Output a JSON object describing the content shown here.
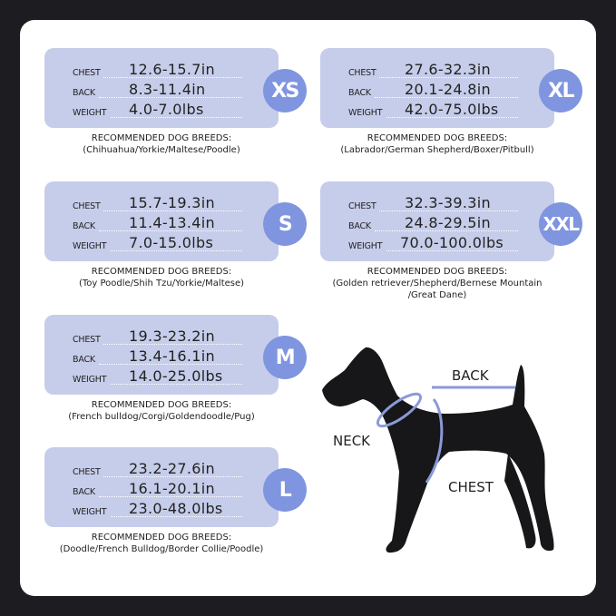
{
  "row_labels": {
    "chest": "CHEST",
    "back": "BACK",
    "weight": "WEIGHT"
  },
  "breeds_heading": "RECOMMENDED DOG BREEDS:",
  "colors": {
    "card": "#c6cdea",
    "badge": "#7f95df",
    "measure_line": "#8a9ad8"
  },
  "sizes": [
    {
      "size": "XS",
      "chest": "12.6-15.7in",
      "back": "8.3-11.4in",
      "weight": "4.0-7.0lbs",
      "breeds": [
        "(Chihuahua/Yorkie/Maltese/Poodle)"
      ]
    },
    {
      "size": "S",
      "chest": "15.7-19.3in",
      "back": "11.4-13.4in",
      "weight": "7.0-15.0lbs",
      "breeds": [
        "(Toy Poodle/Shih Tzu/Yorkie/Maltese)"
      ]
    },
    {
      "size": "M",
      "chest": "19.3-23.2in",
      "back": "13.4-16.1in",
      "weight": "14.0-25.0lbs",
      "breeds": [
        "(French bulldog/Corgi/Goldendoodle/Pug)"
      ]
    },
    {
      "size": "L",
      "chest": "23.2-27.6in",
      "back": "16.1-20.1in",
      "weight": "23.0-48.0lbs",
      "breeds": [
        "(Doodle/French Bulldog/Border Collie/Poodle)"
      ]
    },
    {
      "size": "XL",
      "chest": "27.6-32.3in",
      "back": "20.1-24.8in",
      "weight": "42.0-75.0lbs",
      "breeds": [
        "(Labrador/German Shepherd/Boxer/Pitbull)"
      ]
    },
    {
      "size": "XXL",
      "chest": "32.3-39.3in",
      "back": "24.8-29.5in",
      "weight": "70.0-100.0lbs",
      "breeds": [
        "(Golden retriever/Shepherd/Bernese Mountain",
        "/Great Dane)"
      ]
    }
  ],
  "diagram": {
    "back": "BACK",
    "neck": "NECK",
    "chest": "CHEST"
  }
}
